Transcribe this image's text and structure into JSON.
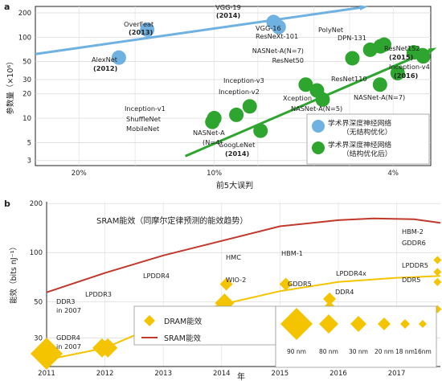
{
  "chart_data": [
    {
      "panel": "a",
      "type": "scatter",
      "xlabel": "前5大误判",
      "ylabel": "参数量（×10⁶）",
      "x_scale": "log",
      "x_reversed": true,
      "y_scale": "log",
      "xlim": [
        0.25,
        0.033
      ],
      "ylim": [
        2.6,
        240
      ],
      "x_ticks": [
        {
          "value": 0.2,
          "label": "20%"
        },
        {
          "value": 0.1,
          "label": "10%"
        },
        {
          "value": 0.04,
          "label": "4%"
        }
      ],
      "y_ticks": [
        3,
        5,
        10,
        20,
        30,
        50,
        100,
        200
      ],
      "grid": true,
      "legend_position": "bottom-right",
      "series": [
        {
          "name": "学术界深度神经网络（无结构优化）",
          "color": "#6fb1e0",
          "points": [
            {
              "label": "AlexNet (2012)",
              "x": 0.163,
              "y": 56
            },
            {
              "label": "OverFeat (2013)",
              "x": 0.141,
              "y": 124
            },
            {
              "label": "VGG-19 (2014)",
              "x": 0.0738,
              "y": 154
            },
            {
              "label": "VGG-16",
              "x": 0.0719,
              "y": 134
            }
          ],
          "trend": {
            "from": [
              0.25,
              62
            ],
            "to": [
              0.047,
              233
            ]
          }
        },
        {
          "name": "学术界深度神经网络（结构优化后）",
          "color": "#2ea52e",
          "points": [
            {
              "label": "GoogLeNet (2014)",
              "x": 0.0789,
              "y": 7
            },
            {
              "label": "Inception-v1",
              "x": 0.1,
              "y": 10
            },
            {
              "label": "ShuffleNet",
              "x": 0.101,
              "y": 9
            },
            {
              "label": "MobileNet",
              "x": 0.1,
              "y": 10
            },
            {
              "label": "NASNet-A (N=4)",
              "x": 0.0893,
              "y": 11
            },
            {
              "label": "Inception-v2",
              "x": 0.0834,
              "y": 14
            },
            {
              "label": "Inception-v3",
              "x": 0.0626,
              "y": 26
            },
            {
              "label": "Xception",
              "x": 0.0591,
              "y": 22
            },
            {
              "label": "NASNet-A (N=5)",
              "x": 0.0574,
              "y": 17
            },
            {
              "label": "ResNet50",
              "x": 0.0493,
              "y": 55
            },
            {
              "label": "ResNeXt-101",
              "x": 0.045,
              "y": 70
            },
            {
              "label": "NASNet-A (N=7)",
              "x": 0.0427,
              "y": 77
            },
            {
              "label": "PolyNet",
              "x": 0.0419,
              "y": 81
            },
            {
              "label": "ResNet110",
              "x": 0.0428,
              "y": 26
            },
            {
              "label": "NASNet-A (N=7)",
              "x": 0.0391,
              "y": 36
            },
            {
              "label": "DPN-131",
              "x": 0.036,
              "y": 65
            },
            {
              "label": "Inception-v4 (2016)",
              "x": 0.0343,
              "y": 58
            },
            {
              "label": "ResNet152 (2015)",
              "x": 0.0344,
              "y": 60
            }
          ],
          "trend": {
            "from": [
              0.116,
              3.4
            ],
            "to": [
              0.033,
              69
            ]
          }
        }
      ],
      "legend": [
        {
          "line1": "学术界深度神经网络",
          "line2": "（无结构优化）",
          "color": "#6fb1e0"
        },
        {
          "line1": "学术界深度神经网络",
          "line2": "（结构优化后）",
          "color": "#2ea52e"
        }
      ]
    },
    {
      "panel": "b",
      "type": "scatter",
      "xlabel": "年",
      "ylabel": "能效（bits nJ⁻¹）",
      "y_scale": "log",
      "xlim": [
        2011,
        2017.75
      ],
      "ylim": [
        20,
        205
      ],
      "x_ticks": [
        2011,
        2012,
        2013,
        2014,
        2015,
        2016,
        2017
      ],
      "y_ticks": [
        30,
        50,
        100,
        200
      ],
      "grid": true,
      "legend_position": "bottom-left",
      "sram_title": "SRAM能效（同摩尔定律预测的能效趋势）",
      "series": [
        {
          "name": "DRAM能效",
          "color": "#f5c400",
          "points": [
            {
              "label": "GDDR4 in 2007",
              "x": 2011,
              "y": 24,
              "node": "90nm"
            },
            {
              "label": "DDR3 in 2007",
              "x": 2011.95,
              "y": 26,
              "node": "80nm"
            },
            {
              "label": "LPDDR3",
              "x": 2012.05,
              "y": 26,
              "node": "80nm"
            },
            {
              "label": "LPDDR4",
              "x": 2013.05,
              "y": 40,
              "node": "80nm"
            },
            {
              "label": "WIO-2",
              "x": 2014.05,
              "y": 49,
              "node": "80nm"
            },
            {
              "label": "HMC",
              "x": 2014.08,
              "y": 64,
              "node": "20nm"
            },
            {
              "label": "HBM-1",
              "x": 2015.1,
              "y": 64,
              "node": "20nm"
            },
            {
              "label": "GDDR5",
              "x": 2015.85,
              "y": 46,
              "node": "20nm"
            },
            {
              "label": "LPDDR4x",
              "x": 2015.85,
              "y": 52,
              "node": "20nm"
            },
            {
              "label": "DDR4",
              "x": 2015.85,
              "y": 40,
              "node": "20nm"
            },
            {
              "label": "HBM-2",
              "x": 2017.7,
              "y": 90,
              "node": "16nm"
            },
            {
              "label": "GDDR6",
              "x": 2017.7,
              "y": 76,
              "node": "16nm"
            },
            {
              "label": "LPDDR5",
              "x": 2017.7,
              "y": 66,
              "node": "16nm"
            },
            {
              "label": "DDR5",
              "x": 2017.7,
              "y": 45,
              "node": "16nm"
            }
          ],
          "trend": [
            [
              2011,
              22
            ],
            [
              2012,
              26
            ],
            [
              2013,
              37
            ],
            [
              2014,
              48
            ],
            [
              2015,
              58
            ],
            [
              2016,
              66
            ],
            [
              2017,
              70
            ],
            [
              2017.75,
              72
            ]
          ]
        },
        {
          "name": "SRAM能效",
          "color": "#c0392b",
          "trend": [
            [
              2011,
              57
            ],
            [
              2012,
              75
            ],
            [
              2013,
              96
            ],
            [
              2014,
              118
            ],
            [
              2015,
              145
            ],
            [
              2016,
              158
            ],
            [
              2016.6,
              162
            ],
            [
              2017.3,
              160
            ],
            [
              2017.75,
              152
            ]
          ]
        }
      ],
      "process_nodes": [
        "90 nm",
        "80 nm",
        "30 nm",
        "20 nm",
        "18 nm",
        "16nm"
      ]
    }
  ]
}
